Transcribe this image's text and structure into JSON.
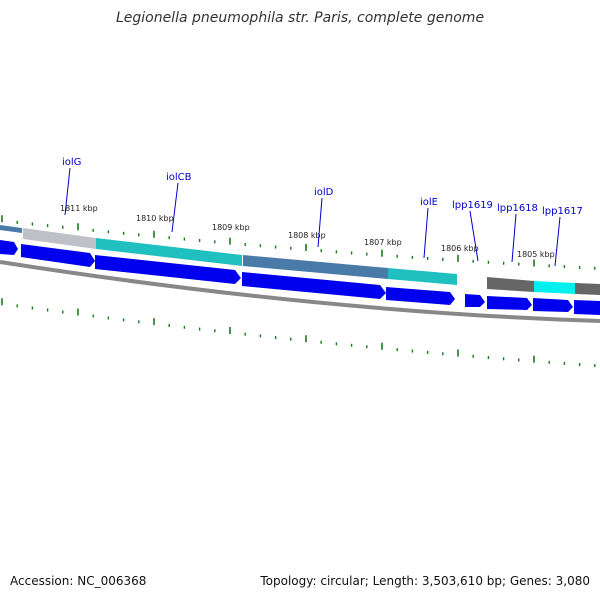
{
  "title": "Legionella pneumophila str. Paris, complete genome",
  "footer": {
    "accession": "Accession: NC_006368",
    "stats": "Topology: circular; Length: 3,503,610 bp; Genes: 3,080"
  },
  "colors": {
    "gene_label": "#0000cc",
    "cds": "#0000ee",
    "tick": "#1a7a1a",
    "backbone": "#888888",
    "gray_feature": "#c0c0c8",
    "teal_feature": "#20c0c0",
    "steel_feature": "#4a7aa8",
    "dark_gray_feature": "#666666",
    "cyan_feature": "#00f0f0"
  },
  "kbp_labels": [
    "1811 kbp",
    "1810 kbp",
    "1809 kbp",
    "1808 kbp",
    "1807 kbp",
    "1806 kbp",
    "1805 kbp"
  ],
  "genes": [
    "iolG",
    "iolCB",
    "iolD",
    "iolE",
    "lpp1619",
    "lpp1618",
    "lpp1617"
  ]
}
